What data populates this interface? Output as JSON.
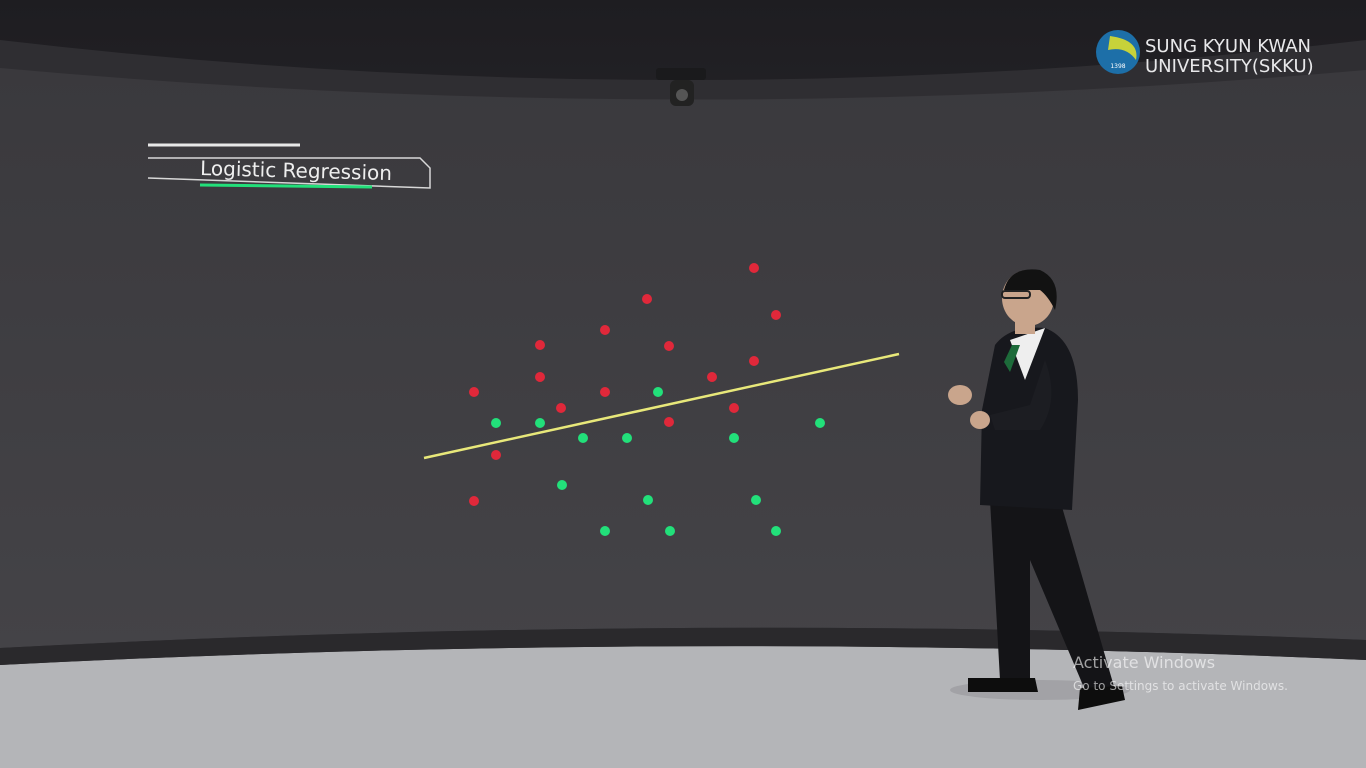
{
  "title_panel": {
    "title": "Logistic Regression"
  },
  "logo": {
    "line1": "SUNG KYUN KWAN",
    "line2": "UNIVERSITY(SKKU)",
    "year": "1398"
  },
  "watermark": {
    "title": "Activate Windows",
    "subtitle": "Go to Settings to activate Windows."
  }
}
